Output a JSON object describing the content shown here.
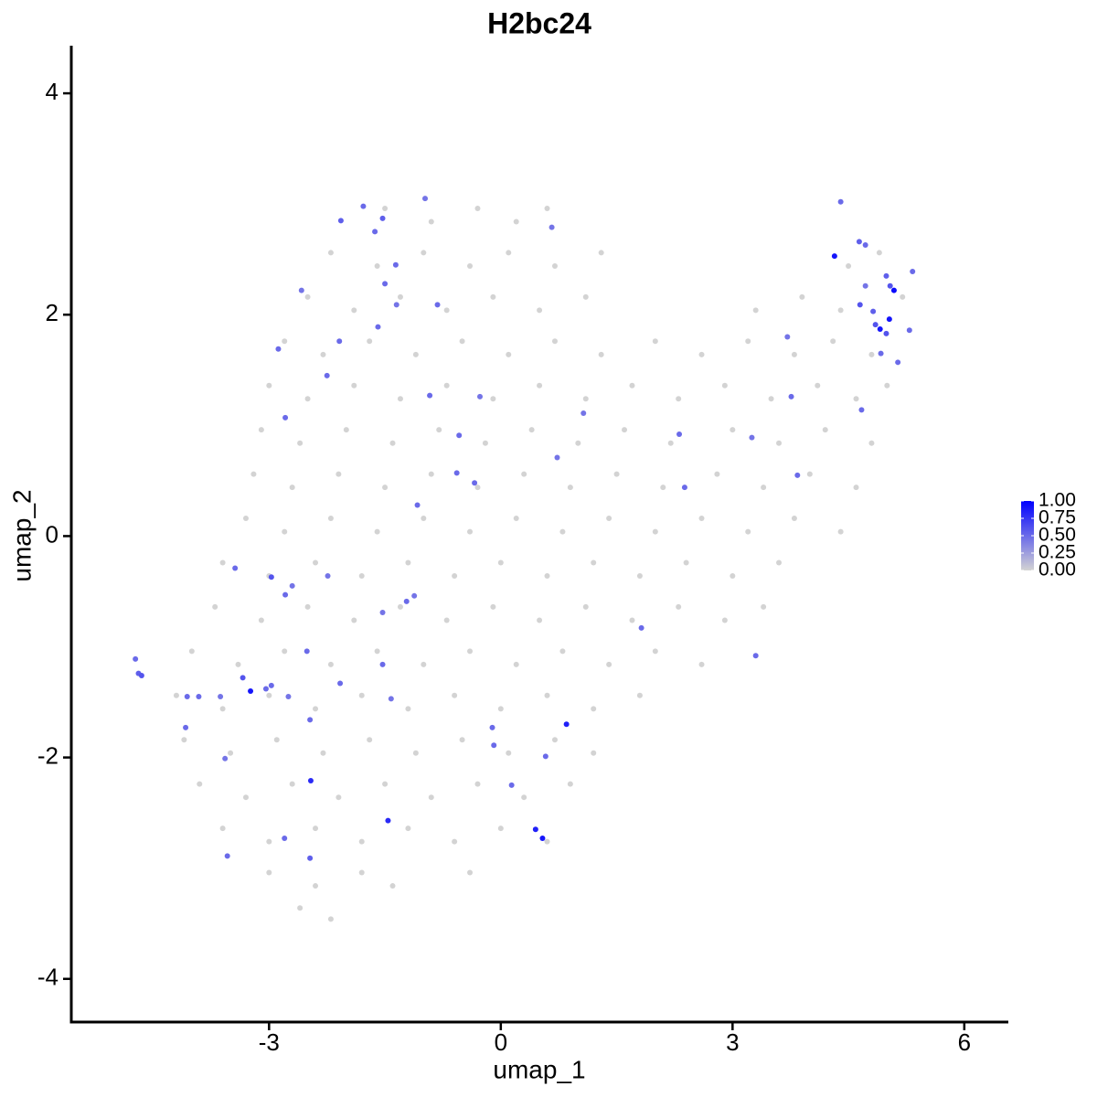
{
  "chart_data": {
    "type": "scatter",
    "title": "H2bc24",
    "xlabel": "umap_1",
    "ylabel": "umap_2",
    "xlim": [
      -5.56,
      6.57
    ],
    "ylim": [
      -4.39,
      4.43
    ],
    "xticks": [
      -3,
      0,
      3,
      6
    ],
    "yticks": [
      -4,
      -2,
      0,
      2,
      4
    ],
    "grid": false,
    "legend": "right",
    "low_color": "#d3d3d3",
    "high_color": "#0000ff",
    "colorbar_lim": [
      0,
      1
    ],
    "colorbar_ticks": [
      {
        "value": 0,
        "label": "0.00"
      },
      {
        "value": 0.25,
        "label": "0.25"
      },
      {
        "value": 0.5,
        "label": "0.50"
      },
      {
        "value": 0.75,
        "label": "0.75"
      },
      {
        "value": 1,
        "label": "1.00"
      }
    ],
    "x": [
      -1.5,
      -0.9,
      -0.3,
      0.2,
      0.6,
      -2.2,
      -1.6,
      -1.0,
      -0.4,
      0.1,
      0.7,
      1.3,
      4.5,
      4.9,
      -2.5,
      -1.9,
      -1.3,
      -0.7,
      -0.1,
      0.5,
      1.1,
      3.3,
      3.9,
      4.4,
      5.2,
      -2.8,
      -2.3,
      -1.7,
      -1.1,
      -0.5,
      0.1,
      0.7,
      1.3,
      2.0,
      2.6,
      3.2,
      3.8,
      4.3,
      4.8,
      -3.0,
      -2.5,
      -1.9,
      -1.3,
      -0.7,
      -0.1,
      0.5,
      1.1,
      1.7,
      2.3,
      2.9,
      3.5,
      4.1,
      4.6,
      5.0,
      -3.1,
      -2.6,
      -2.0,
      -1.4,
      -0.8,
      -0.2,
      0.4,
      1.0,
      1.6,
      2.2,
      3.0,
      3.6,
      4.2,
      4.8,
      -3.2,
      -2.7,
      -2.1,
      -1.5,
      -0.9,
      -0.3,
      0.3,
      0.9,
      1.5,
      2.1,
      2.8,
      3.4,
      4.0,
      4.6,
      -3.3,
      -2.8,
      -2.2,
      -1.6,
      -1.0,
      -0.4,
      0.2,
      0.8,
      1.4,
      2.0,
      2.6,
      3.2,
      3.8,
      4.4,
      -3.6,
      -3.0,
      -2.4,
      -1.8,
      -1.2,
      -0.6,
      0.0,
      0.6,
      1.2,
      1.8,
      2.4,
      3.0,
      3.6,
      -3.7,
      -3.1,
      -2.5,
      -1.9,
      -1.3,
      -0.7,
      -0.1,
      0.5,
      1.1,
      1.7,
      2.3,
      2.9,
      3.4,
      -4.0,
      -3.4,
      -2.8,
      -2.2,
      -1.6,
      -1.0,
      -0.4,
      0.2,
      0.8,
      1.4,
      2.0,
      2.6,
      -4.2,
      -3.6,
      -3.0,
      -2.4,
      -1.8,
      -1.2,
      -0.6,
      0.0,
      0.6,
      1.2,
      1.8,
      -4.1,
      -3.5,
      -2.9,
      -2.3,
      -1.7,
      -1.1,
      -0.5,
      0.1,
      0.7,
      1.2,
      -3.9,
      -3.3,
      -2.7,
      -2.1,
      -1.5,
      -0.9,
      -0.3,
      0.3,
      0.9,
      -3.6,
      -3.0,
      -2.4,
      -1.8,
      -1.2,
      -0.6,
      0.0,
      0.6,
      -3.0,
      -2.4,
      -1.8,
      -1.4,
      -0.4,
      -2.6,
      -2.2,
      -4.73,
      -4.69,
      -4.65,
      -4.06,
      -3.91,
      -4.08,
      -3.63,
      -3.57,
      -3.54,
      -3.44,
      -3.34,
      -3.24,
      -3.04,
      -2.97,
      -2.97,
      -2.79,
      -2.7,
      -2.8,
      -2.75,
      -2.88,
      -2.79,
      -2.58,
      -2.51,
      -2.47,
      -2.46,
      -2.47,
      -2.25,
      -2.24,
      -2.09,
      -2.08,
      -2.07,
      -1.78,
      -1.63,
      -1.59,
      -1.53,
      -1.5,
      -1.36,
      -1.35,
      -1.53,
      -1.53,
      -1.42,
      -1.46,
      -1.22,
      -1.12,
      -1.08,
      -0.98,
      -0.92,
      -0.82,
      -0.54,
      -0.57,
      -0.34,
      -0.27,
      -0.11,
      -0.09,
      0.14,
      0.45,
      0.54,
      0.58,
      0.66,
      0.73,
      0.85,
      1.07,
      1.82,
      2.31,
      2.38,
      3.25,
      3.3,
      3.71,
      3.76,
      3.84,
      4.32,
      4.4,
      4.64,
      4.72,
      4.72,
      4.65,
      4.67,
      4.82,
      4.85,
      4.91,
      4.92,
      4.99,
      4.99,
      5.04,
      5.09,
      5.03,
      5.14,
      5.29,
      5.33
    ],
    "y": [
      2.96,
      2.84,
      2.96,
      2.84,
      2.96,
      2.56,
      2.44,
      2.56,
      2.44,
      2.56,
      2.44,
      2.56,
      2.44,
      2.56,
      2.16,
      2.04,
      2.16,
      2.04,
      2.16,
      2.04,
      2.16,
      2.04,
      2.16,
      2.04,
      2.16,
      1.76,
      1.64,
      1.76,
      1.64,
      1.76,
      1.64,
      1.76,
      1.64,
      1.76,
      1.64,
      1.76,
      1.64,
      1.76,
      1.64,
      1.36,
      1.24,
      1.36,
      1.24,
      1.36,
      1.24,
      1.36,
      1.24,
      1.36,
      1.24,
      1.36,
      1.24,
      1.36,
      1.24,
      1.36,
      0.96,
      0.84,
      0.96,
      0.84,
      0.96,
      0.84,
      0.96,
      0.84,
      0.96,
      0.84,
      0.96,
      0.84,
      0.96,
      0.84,
      0.56,
      0.44,
      0.56,
      0.44,
      0.56,
      0.44,
      0.56,
      0.44,
      0.56,
      0.44,
      0.56,
      0.44,
      0.56,
      0.44,
      0.16,
      0.04,
      0.16,
      0.04,
      0.16,
      0.04,
      0.16,
      0.04,
      0.16,
      0.04,
      0.16,
      0.04,
      0.16,
      0.04,
      -0.24,
      -0.36,
      -0.24,
      -0.36,
      -0.24,
      -0.36,
      -0.24,
      -0.36,
      -0.24,
      -0.36,
      -0.24,
      -0.36,
      -0.24,
      -0.64,
      -0.76,
      -0.64,
      -0.76,
      -0.64,
      -0.76,
      -0.64,
      -0.76,
      -0.64,
      -0.76,
      -0.64,
      -0.76,
      -0.64,
      -1.04,
      -1.16,
      -1.04,
      -1.16,
      -1.04,
      -1.16,
      -1.04,
      -1.16,
      -1.04,
      -1.16,
      -1.04,
      -1.16,
      -1.44,
      -1.56,
      -1.44,
      -1.56,
      -1.44,
      -1.56,
      -1.44,
      -1.56,
      -1.44,
      -1.56,
      -1.44,
      -1.84,
      -1.96,
      -1.84,
      -1.96,
      -1.84,
      -1.96,
      -1.84,
      -1.96,
      -1.84,
      -1.96,
      -2.24,
      -2.36,
      -2.24,
      -2.36,
      -2.24,
      -2.36,
      -2.24,
      -2.36,
      -2.24,
      -2.64,
      -2.76,
      -2.64,
      -2.76,
      -2.64,
      -2.76,
      -2.64,
      -2.76,
      -3.04,
      -3.16,
      -3.04,
      -3.16,
      -3.04,
      -3.36,
      -3.46,
      -1.11,
      -1.24,
      -1.26,
      -1.45,
      -1.45,
      -1.73,
      -1.45,
      -2.01,
      -2.89,
      -0.29,
      -1.28,
      -1.4,
      -1.38,
      -1.35,
      -0.37,
      -0.53,
      -0.45,
      -2.73,
      -1.45,
      1.69,
      1.07,
      2.22,
      -1.04,
      -1.66,
      -2.21,
      -2.91,
      1.45,
      -0.36,
      1.76,
      -1.33,
      2.85,
      2.98,
      2.75,
      1.89,
      2.87,
      2.28,
      2.45,
      2.09,
      -0.69,
      -1.16,
      -1.47,
      -2.57,
      -0.59,
      -0.54,
      0.28,
      3.05,
      1.27,
      2.09,
      0.91,
      0.57,
      0.48,
      1.26,
      -1.73,
      -1.89,
      -2.25,
      -2.65,
      -2.73,
      -1.99,
      2.79,
      0.71,
      -1.7,
      1.11,
      -0.83,
      0.92,
      0.44,
      0.89,
      -1.08,
      1.8,
      1.26,
      0.55,
      2.53,
      3.02,
      2.66,
      2.63,
      2.26,
      2.09,
      1.14,
      2.03,
      1.91,
      1.87,
      1.65,
      2.35,
      1.83,
      2.26,
      2.22,
      1.96,
      1.57,
      1.86,
      2.39
    ],
    "values": [
      0,
      0,
      0,
      0,
      0,
      0,
      0,
      0,
      0,
      0,
      0,
      0,
      0,
      0,
      0,
      0,
      0,
      0,
      0,
      0,
      0,
      0,
      0,
      0,
      0,
      0,
      0,
      0,
      0,
      0,
      0,
      0,
      0,
      0,
      0,
      0,
      0,
      0,
      0,
      0,
      0,
      0,
      0,
      0,
      0,
      0,
      0,
      0,
      0,
      0,
      0,
      0,
      0,
      0,
      0,
      0,
      0,
      0,
      0,
      0,
      0,
      0,
      0,
      0,
      0,
      0,
      0,
      0,
      0,
      0,
      0,
      0,
      0,
      0,
      0,
      0,
      0,
      0,
      0,
      0,
      0,
      0,
      0,
      0,
      0,
      0,
      0,
      0,
      0,
      0,
      0,
      0,
      0,
      0,
      0,
      0,
      0,
      0,
      0,
      0,
      0,
      0,
      0,
      0,
      0,
      0,
      0,
      0,
      0,
      0,
      0,
      0,
      0,
      0,
      0,
      0,
      0,
      0,
      0,
      0,
      0,
      0,
      0,
      0,
      0,
      0,
      0,
      0,
      0,
      0,
      0,
      0,
      0,
      0,
      0,
      0,
      0,
      0,
      0,
      0,
      0,
      0,
      0,
      0,
      0,
      0,
      0,
      0,
      0,
      0,
      0,
      0,
      0,
      0,
      0,
      0,
      0,
      0,
      0,
      0,
      0,
      0,
      0,
      0,
      0,
      0,
      0,
      0,
      0,
      0,
      0,
      0,
      0,
      0,
      0,
      0,
      0,
      0,
      0,
      0.5,
      0.55,
      0.6,
      0.5,
      0.5,
      0.5,
      0.45,
      0.45,
      0.5,
      0.5,
      0.6,
      0.9,
      0.5,
      0.5,
      0.6,
      0.5,
      0.45,
      0.5,
      0.45,
      0.5,
      0.5,
      0.45,
      0.5,
      0.5,
      0.8,
      0.55,
      0.5,
      0.45,
      0.5,
      0.5,
      0.55,
      0.5,
      0.5,
      0.5,
      0.55,
      0.5,
      0.5,
      0.45,
      0.45,
      0.5,
      0.45,
      0.8,
      0.5,
      0.45,
      0.5,
      0.45,
      0.5,
      0.5,
      0.5,
      0.5,
      0.5,
      0.45,
      0.5,
      0.5,
      0.5,
      0.85,
      0.9,
      0.5,
      0.45,
      0.45,
      0.85,
      0.45,
      0.5,
      0.5,
      0.5,
      0.45,
      0.5,
      0.45,
      0.5,
      0.5,
      0.9,
      0.5,
      0.55,
      0.5,
      0.45,
      0.6,
      0.5,
      0.55,
      0.6,
      0.9,
      0.5,
      0.55,
      0.6,
      0.6,
      0.95,
      0.9,
      0.5,
      0.5,
      0.5
    ]
  }
}
